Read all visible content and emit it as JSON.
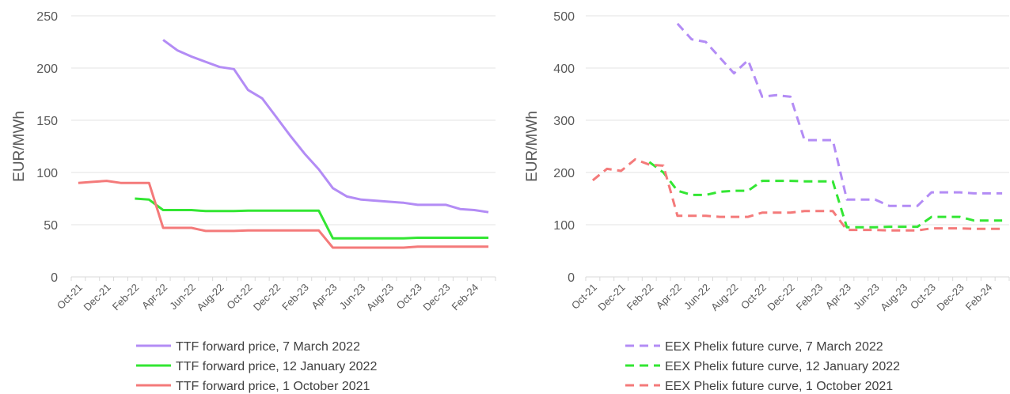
{
  "chart_data": [
    {
      "type": "line",
      "title": "",
      "xlabel": "",
      "ylabel": "EUR/MWh",
      "ylim": [
        0,
        250
      ],
      "yticks": [
        0,
        50,
        100,
        150,
        200,
        250
      ],
      "grid": true,
      "legend_position": "bottom",
      "x_labels": [
        "Oct-21",
        "Dec-21",
        "Feb-22",
        "Apr-22",
        "Jun-22",
        "Aug-22",
        "Oct-22",
        "Dec-22",
        "Feb-23",
        "Apr-23",
        "Jun-23",
        "Aug-23",
        "Oct-23",
        "Dec-23",
        "Feb-24"
      ],
      "x": [
        "Oct-21",
        "Nov-21",
        "Dec-21",
        "Jan-22",
        "Feb-22",
        "Mar-22",
        "Apr-22",
        "May-22",
        "Jun-22",
        "Jul-22",
        "Aug-22",
        "Sep-22",
        "Oct-22",
        "Nov-22",
        "Dec-22",
        "Jan-23",
        "Feb-23",
        "Mar-23",
        "Apr-23",
        "May-23",
        "Jun-23",
        "Jul-23",
        "Aug-23",
        "Sep-23",
        "Oct-23",
        "Nov-23",
        "Dec-23",
        "Jan-24",
        "Feb-24",
        "Mar-24"
      ],
      "series": [
        {
          "name": "TTF forward price, 7 March 2022",
          "color": "#b38cf5",
          "dashed": false,
          "values": [
            null,
            null,
            null,
            null,
            null,
            null,
            227,
            217,
            211,
            206,
            201,
            199,
            179,
            171,
            153,
            135,
            118,
            103,
            85,
            77,
            74,
            73,
            72,
            71,
            69,
            69,
            69,
            65,
            64,
            62
          ]
        },
        {
          "name": "TTF forward price, 12 January 2022",
          "color": "#33e633",
          "dashed": false,
          "values": [
            null,
            null,
            null,
            null,
            75,
            74,
            64,
            64,
            64,
            63,
            63,
            63,
            63.5,
            63.5,
            63.5,
            63.5,
            63.5,
            63.5,
            37,
            37,
            37,
            37,
            37,
            37,
            37.5,
            37.5,
            37.5,
            37.5,
            37.5,
            37.5
          ]
        },
        {
          "name": "TTF forward price, 1 October 2021",
          "color": "#f47a7a",
          "dashed": false,
          "values": [
            90,
            91,
            92,
            90,
            90,
            90,
            47,
            47,
            47,
            44,
            44,
            44,
            44.5,
            44.5,
            44.5,
            44.5,
            44.5,
            44.5,
            28,
            28,
            28,
            28,
            28,
            28,
            29,
            29,
            29,
            29,
            29,
            29
          ]
        }
      ]
    },
    {
      "type": "line",
      "title": "",
      "xlabel": "",
      "ylabel": "EUR/MWh",
      "ylim": [
        0,
        500
      ],
      "yticks": [
        0,
        100,
        200,
        300,
        400,
        500
      ],
      "grid": true,
      "legend_position": "bottom",
      "x_labels": [
        "Oct-21",
        "Dec-21",
        "Feb-22",
        "Apr-22",
        "Jun-22",
        "Aug-22",
        "Oct-22",
        "Dec-22",
        "Feb-23",
        "Apr-23",
        "Jun-23",
        "Aug-23",
        "Oct-23",
        "Dec-23",
        "Feb-24"
      ],
      "x": [
        "Oct-21",
        "Nov-21",
        "Dec-21",
        "Jan-22",
        "Feb-22",
        "Mar-22",
        "Apr-22",
        "May-22",
        "Jun-22",
        "Jul-22",
        "Aug-22",
        "Sep-22",
        "Oct-22",
        "Nov-22",
        "Dec-22",
        "Jan-23",
        "Feb-23",
        "Mar-23",
        "Apr-23",
        "May-23",
        "Jun-23",
        "Jul-23",
        "Aug-23",
        "Sep-23",
        "Oct-23",
        "Nov-23",
        "Dec-23",
        "Jan-24",
        "Feb-24",
        "Mar-24"
      ],
      "series": [
        {
          "name": "EEX Phelix future curve, 7 March 2022",
          "color": "#b38cf5",
          "dashed": true,
          "values": [
            null,
            null,
            null,
            null,
            null,
            null,
            485,
            455,
            450,
            420,
            390,
            415,
            345,
            348,
            345,
            262,
            262,
            262,
            148,
            148,
            148,
            136,
            136,
            136,
            162,
            162,
            162,
            160,
            160,
            160
          ]
        },
        {
          "name": "EEX Phelix future curve, 12 January 2022",
          "color": "#33e633",
          "dashed": true,
          "values": [
            null,
            null,
            null,
            null,
            220,
            200,
            165,
            157,
            157,
            163,
            165,
            165,
            184,
            184,
            184,
            183,
            183,
            183,
            95,
            95,
            95,
            96,
            96,
            96,
            115,
            115,
            115,
            108,
            108,
            108
          ]
        },
        {
          "name": "EEX Phelix future curve, 1 October 2021",
          "color": "#f47a7a",
          "dashed": true,
          "values": [
            185,
            207,
            203,
            225,
            215,
            213,
            117,
            117,
            117,
            115,
            115,
            115,
            123,
            123,
            123,
            126,
            126,
            126,
            90,
            90,
            90,
            89,
            89,
            89,
            93,
            93,
            93,
            92,
            92,
            92
          ]
        }
      ]
    }
  ]
}
